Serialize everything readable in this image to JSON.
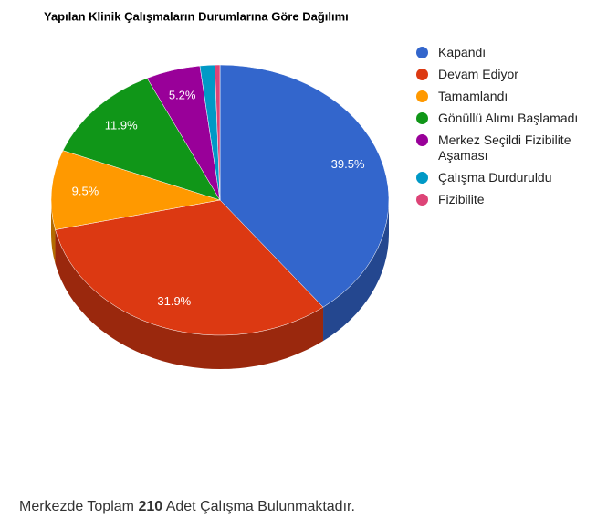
{
  "chart_data": {
    "type": "pie3d",
    "title": "Yapılan Klinik Çalışmaların Durumlarına Göre Dağılımı",
    "categories": [
      "Kapandı",
      "Devam Ediyor",
      "Tamamlandı",
      "Gönüllü Alımı Başlamadı",
      "Merkez Seçildi Fizibilite Aşaması",
      "Çalışma Durduruldu",
      "Fizibilite"
    ],
    "values": [
      39.5,
      31.9,
      9.5,
      11.9,
      5.2,
      1.4,
      0.5
    ],
    "value_labels": [
      "39.5%",
      "31.9%",
      "9.5%",
      "11.9%",
      "5.2%",
      null,
      null
    ],
    "colors": [
      "#3366cc",
      "#dc3912",
      "#ff9900",
      "#109618",
      "#990099",
      "#0099c6",
      "#dd4477"
    ],
    "legend": "right"
  },
  "footer": {
    "prefix": "Merkezde Toplam",
    "count": 210,
    "suffix": "Adet Çalışma Bulunmaktadır."
  }
}
